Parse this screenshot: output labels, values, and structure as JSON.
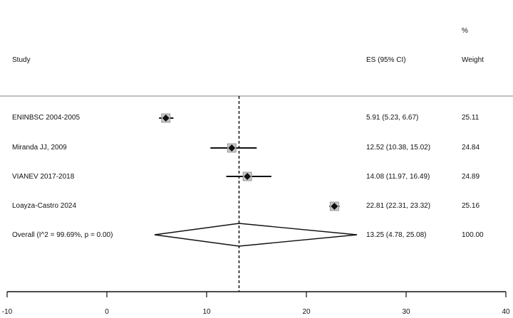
{
  "chart_data": {
    "type": "forest",
    "columns": {
      "study": "Study",
      "es": "ES (95% CI)",
      "weight_pct": "%",
      "weight": "Weight"
    },
    "studies": [
      {
        "label": "ENINBSC 2004-2005",
        "es": 5.91,
        "lo": 5.23,
        "hi": 6.67,
        "es_text": "5.91 (5.23, 6.67)",
        "weight": "25.11"
      },
      {
        "label": "Miranda JJ, 2009",
        "es": 12.52,
        "lo": 10.38,
        "hi": 15.02,
        "es_text": "12.52 (10.38, 15.02)",
        "weight": "24.84"
      },
      {
        "label": "VIANEV 2017-2018",
        "es": 14.08,
        "lo": 11.97,
        "hi": 16.49,
        "es_text": "14.08 (11.97, 16.49)",
        "weight": "24.89"
      },
      {
        "label": "Loayza-Castro 2024",
        "es": 22.81,
        "lo": 22.31,
        "hi": 23.32,
        "es_text": "22.81 (22.31, 23.32)",
        "weight": "25.16"
      }
    ],
    "overall": {
      "label": "Overall  (I^2 = 99.69%, p = 0.00)",
      "es": 13.25,
      "lo": 4.78,
      "hi": 25.08,
      "es_text": "13.25 (4.78, 25.08)",
      "weight": "100.00"
    },
    "x_ticks": [
      -10,
      0,
      10,
      20,
      30,
      40
    ],
    "xlim": [
      -10,
      40
    ]
  }
}
